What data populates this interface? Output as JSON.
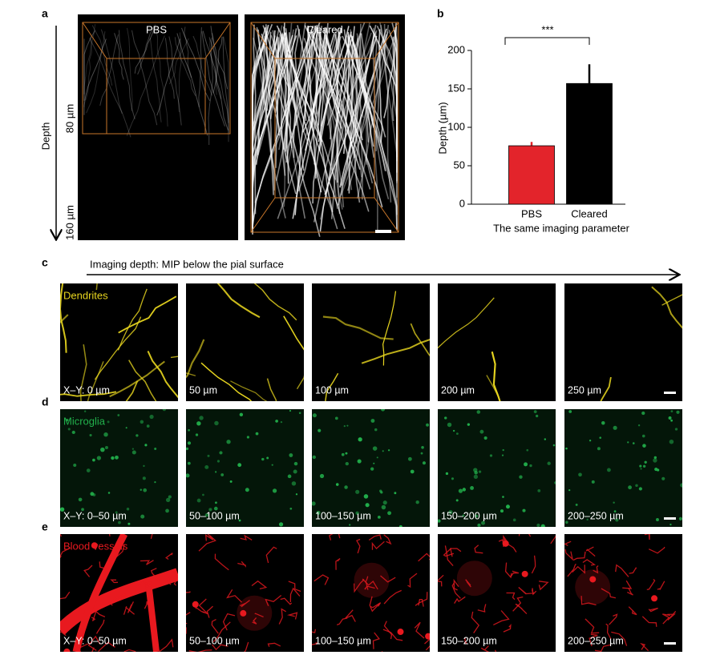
{
  "panel_a": {
    "letter": "a",
    "images": [
      "PBS",
      "Cleared"
    ],
    "axis_label": "Depth",
    "depth_ticks": [
      "80 µm",
      "160 µm"
    ]
  },
  "chart_data": {
    "type": "bar",
    "letter": "b",
    "categories": [
      "PBS",
      "Cleared"
    ],
    "values": [
      76,
      157
    ],
    "errors": [
      5,
      25
    ],
    "colors": [
      "#e3242b",
      "#000000"
    ],
    "significance": "***",
    "xlabel": "The same imaging parameter",
    "ylabel": "Depth (µm)",
    "ylim": [
      0,
      200
    ],
    "yticks": [
      0,
      50,
      100,
      150,
      200
    ]
  },
  "panel_c": {
    "arrow_label": "Imaging depth: MIP below the pial surface",
    "rows": [
      {
        "letter": "c",
        "name": "Dendrites",
        "color": "#e8d61f",
        "tiles": [
          "X–Y: 0 µm",
          "50 µm",
          "100 µm",
          "200 µm",
          "250 µm"
        ]
      },
      {
        "letter": "d",
        "name": "Microglia",
        "color": "#22b14c",
        "tiles": [
          "X–Y: 0–50 µm",
          "50–100 µm",
          "100–150 µm",
          "150–200 µm",
          "200–250 µm"
        ]
      },
      {
        "letter": "e",
        "name": "Blood vessels",
        "color": "#e8191f",
        "tiles": [
          "X–Y: 0–50 µm",
          "50–100 µm",
          "100–150 µm",
          "150–200 µm",
          "200–250 µm"
        ]
      }
    ]
  }
}
